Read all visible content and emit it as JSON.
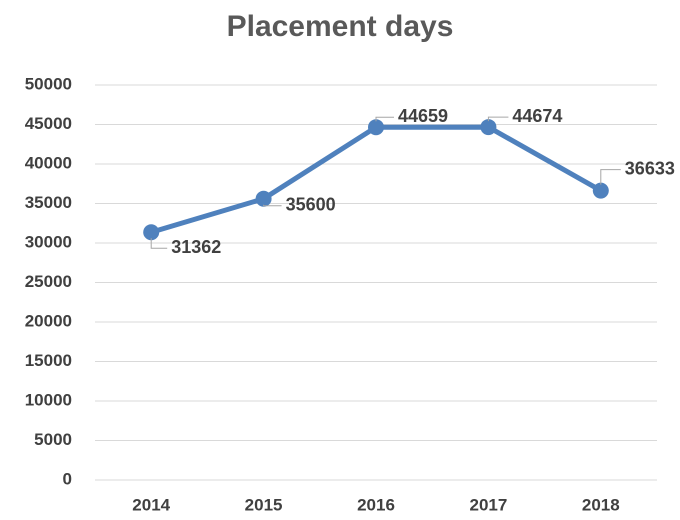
{
  "chart_data": {
    "type": "line",
    "title": "Placement days",
    "categories": [
      "2014",
      "2015",
      "2016",
      "2017",
      "2018"
    ],
    "series": [
      {
        "name": "Placement days",
        "color": "#4f81bd",
        "values": [
          31362,
          35600,
          44659,
          44674,
          36633
        ]
      }
    ],
    "ylim": [
      0,
      50000
    ],
    "yticks": [
      0,
      5000,
      10000,
      15000,
      20000,
      25000,
      30000,
      35000,
      40000,
      45000,
      50000
    ],
    "grid": true
  }
}
